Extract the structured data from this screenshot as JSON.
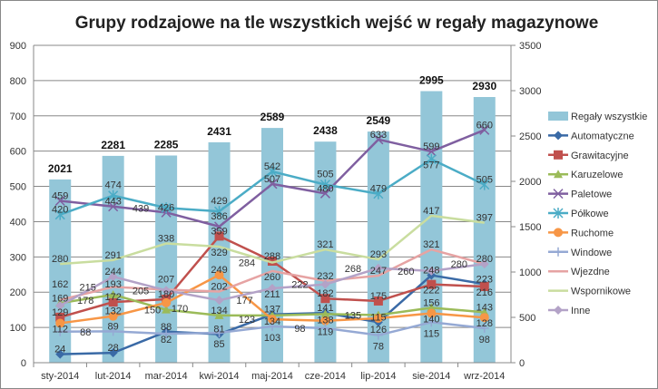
{
  "chart_data": {
    "type": "bar+line",
    "title": "Grupy rodzajowe na tle wszystkich wejść w regały magazynowe",
    "categories": [
      "sty-2014",
      "lut-2014",
      "mar-2014",
      "kwi-2014",
      "maj-2014",
      "cze-2014",
      "lip-2014",
      "sie-2014",
      "wrz-2014"
    ],
    "left_axis": {
      "ylim": [
        0,
        900
      ],
      "ticks": [
        "0",
        "100",
        "200",
        "300",
        "400",
        "500",
        "600",
        "700",
        "800",
        "900"
      ]
    },
    "right_axis": {
      "ylim": [
        0,
        3500
      ],
      "ticks": [
        "0",
        "500",
        "1000",
        "1500",
        "2000",
        "2500",
        "3000",
        "3500"
      ]
    },
    "grid": true,
    "legend": "right",
    "bar_series": {
      "name": "Regały wszystkie",
      "axis": "right",
      "color": "#93c6d8",
      "values": [
        2021,
        2281,
        2285,
        2431,
        2589,
        2438,
        2549,
        2995,
        2930
      ]
    },
    "series": [
      {
        "name": "Automatyczne",
        "color": "#3a6aa6",
        "marker": "diamond",
        "values": [
          24,
          28,
          88,
          81,
          137,
          141,
          115,
          248,
          223
        ]
      },
      {
        "name": "Grawitacyjne",
        "color": "#c0504d",
        "marker": "square",
        "values": [
          129,
          172,
          180,
          359,
          288,
          182,
          175,
          222,
          216
        ]
      },
      {
        "name": "Karuzelowe",
        "color": "#9bbb59",
        "marker": "triangle",
        "values": [
          169,
          193,
          150,
          134,
          134,
          138,
          135,
          156,
          143
        ]
      },
      {
        "name": "Paletowe",
        "color": "#7f5fa0",
        "marker": "x",
        "values": [
          459,
          443,
          426,
          386,
          507,
          480,
          633,
          599,
          660
        ]
      },
      {
        "name": "Półkowe",
        "color": "#4bacc6",
        "marker": "star",
        "values": [
          420,
          474,
          439,
          429,
          542,
          505,
          479,
          577,
          505
        ]
      },
      {
        "name": "Ruchome",
        "color": "#f79646",
        "marker": "circle",
        "values": [
          112,
          132,
          170,
          249,
          123,
          119,
          126,
          140,
          128
        ]
      },
      {
        "name": "Windowe",
        "color": "#95a9d4",
        "marker": "plus",
        "values": [
          88,
          89,
          82,
          85,
          103,
          98,
          78,
          115,
          98
        ]
      },
      {
        "name": "Wjezdne",
        "color": "#e6a3a3",
        "marker": "none",
        "values": [
          178,
          215,
          207,
          202,
          260,
          232,
          247,
          321,
          280
        ]
      },
      {
        "name": "Wspornikowe",
        "color": "#c9dd9f",
        "marker": "none",
        "values": [
          280,
          291,
          338,
          329,
          284,
          321,
          293,
          417,
          397
        ]
      },
      {
        "name": "Inne",
        "color": "#b3a2c7",
        "marker": "diamond",
        "values": [
          162,
          244,
          205,
          177,
          211,
          222,
          268,
          260,
          280
        ]
      }
    ]
  }
}
